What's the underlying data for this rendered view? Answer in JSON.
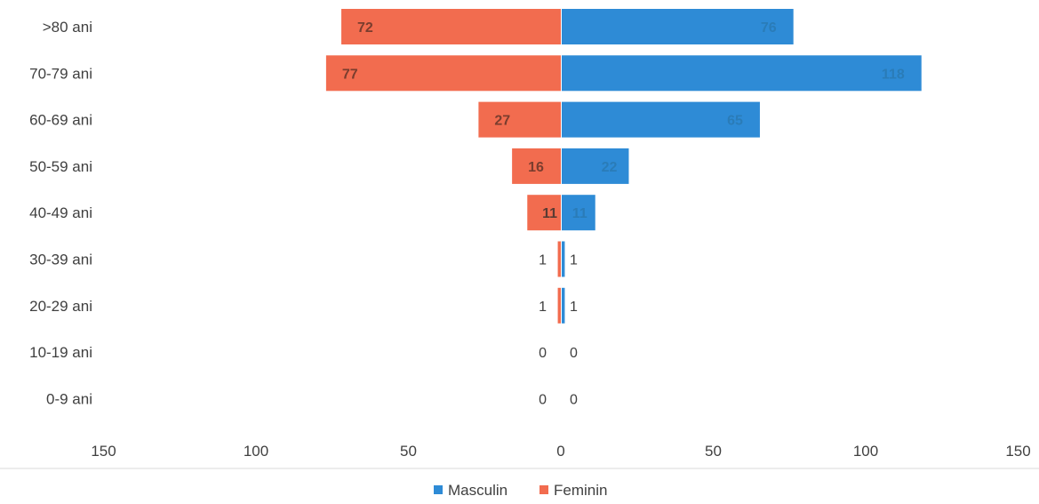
{
  "chart_data": {
    "type": "bar",
    "orientation": "horizontal",
    "layout": "population-pyramid",
    "categories": [
      ">80 ani",
      "70-79 ani",
      "60-69 ani",
      "50-59 ani",
      "40-49 ani",
      "30-39 ani",
      "20-29 ani",
      "10-19 ani",
      "0-9 ani"
    ],
    "series": [
      {
        "name": "Masculin",
        "side": "right",
        "color": "#2E8BD6",
        "values": [
          76,
          118,
          65,
          22,
          11,
          1,
          1,
          0,
          0
        ]
      },
      {
        "name": "Feminin",
        "side": "left",
        "color": "#F26C4F",
        "values": [
          72,
          77,
          27,
          16,
          11,
          1,
          1,
          0,
          0
        ]
      }
    ],
    "x_ticks": [
      "150",
      "100",
      "50",
      "0",
      "50",
      "100",
      "150"
    ],
    "xlim": [
      -150,
      150
    ],
    "legend_position": "bottom",
    "grid": false
  }
}
